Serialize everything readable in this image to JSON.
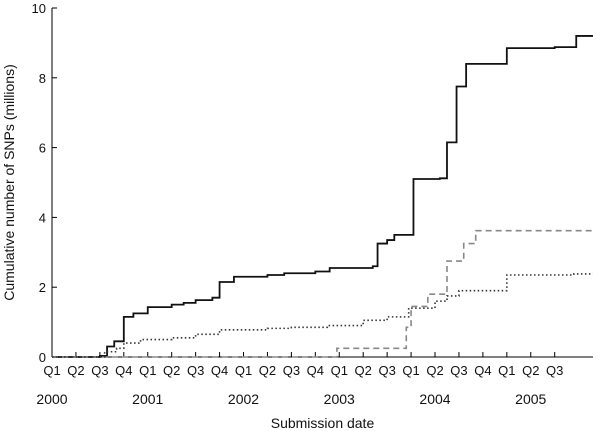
{
  "chart_data": {
    "type": "line",
    "subtype": "step",
    "title": "",
    "xlabel": "Submission date",
    "ylabel": "Cumulative number of SNPs (millions)",
    "ylim": [
      0,
      10
    ],
    "yticks": [
      0,
      2,
      4,
      6,
      8,
      10
    ],
    "grid": false,
    "legend": "none",
    "x_ticks": [
      "Q1",
      "Q2",
      "Q3",
      "Q4",
      "Q1",
      "Q2",
      "Q3",
      "Q4",
      "Q1",
      "Q2",
      "Q3",
      "Q4",
      "Q1",
      "Q2",
      "Q3",
      "Q1",
      "Q2",
      "Q3",
      "Q4",
      "Q1",
      "Q2",
      "Q3"
    ],
    "year_labels": [
      {
        "label": "2000",
        "quarter": 1
      },
      {
        "label": "2001",
        "quarter": 5
      },
      {
        "label": "2002",
        "quarter": 9
      },
      {
        "label": "2003",
        "quarter": 13
      },
      {
        "label": "2004",
        "quarter": 17
      },
      {
        "label": "2005",
        "quarter": 21
      }
    ],
    "x_range_quarters": [
      1,
      23.6
    ],
    "series": [
      {
        "style": "solid",
        "color": "#111111",
        "points": [
          [
            1,
            0
          ],
          [
            3,
            0.03
          ],
          [
            3.3,
            0.3
          ],
          [
            3.6,
            0.45
          ],
          [
            4,
            1.15
          ],
          [
            4.4,
            1.25
          ],
          [
            5,
            1.43
          ],
          [
            6,
            1.5
          ],
          [
            6.5,
            1.55
          ],
          [
            7,
            1.63
          ],
          [
            7.7,
            1.7
          ],
          [
            8,
            2.15
          ],
          [
            8.6,
            2.3
          ],
          [
            10,
            2.35
          ],
          [
            10.7,
            2.4
          ],
          [
            12,
            2.45
          ],
          [
            12.6,
            2.55
          ],
          [
            14.4,
            2.6
          ],
          [
            14.6,
            3.25
          ],
          [
            15,
            3.35
          ],
          [
            15.3,
            3.5
          ],
          [
            16.1,
            5.1
          ],
          [
            17.2,
            5.12
          ],
          [
            17.5,
            6.15
          ],
          [
            17.9,
            7.75
          ],
          [
            18.3,
            8.4
          ],
          [
            20,
            8.85
          ],
          [
            22,
            8.88
          ],
          [
            22.9,
            9.2
          ],
          [
            23.6,
            9.2
          ]
        ]
      },
      {
        "style": "dashed",
        "color": "#888888",
        "points": [
          [
            1,
            0
          ],
          [
            12.8,
            0
          ],
          [
            12.9,
            0.25
          ],
          [
            15.5,
            0.25
          ],
          [
            15.8,
            0.85
          ],
          [
            16,
            1.45
          ],
          [
            16.7,
            1.8
          ],
          [
            17.5,
            2.75
          ],
          [
            18.2,
            3.25
          ],
          [
            18.7,
            3.62
          ],
          [
            23.6,
            3.62
          ]
        ]
      },
      {
        "style": "dotted",
        "color": "#333333",
        "points": [
          [
            1,
            0
          ],
          [
            3.2,
            0.15
          ],
          [
            3.7,
            0.25
          ],
          [
            4,
            0.4
          ],
          [
            4.7,
            0.5
          ],
          [
            6,
            0.55
          ],
          [
            7,
            0.65
          ],
          [
            8,
            0.78
          ],
          [
            10,
            0.82
          ],
          [
            11,
            0.85
          ],
          [
            12.5,
            0.9
          ],
          [
            14,
            1.05
          ],
          [
            15,
            1.15
          ],
          [
            15.9,
            1.4
          ],
          [
            17,
            1.6
          ],
          [
            17.5,
            1.75
          ],
          [
            18,
            1.9
          ],
          [
            20,
            2.35
          ],
          [
            22.8,
            2.38
          ],
          [
            23.6,
            2.38
          ]
        ]
      }
    ]
  }
}
